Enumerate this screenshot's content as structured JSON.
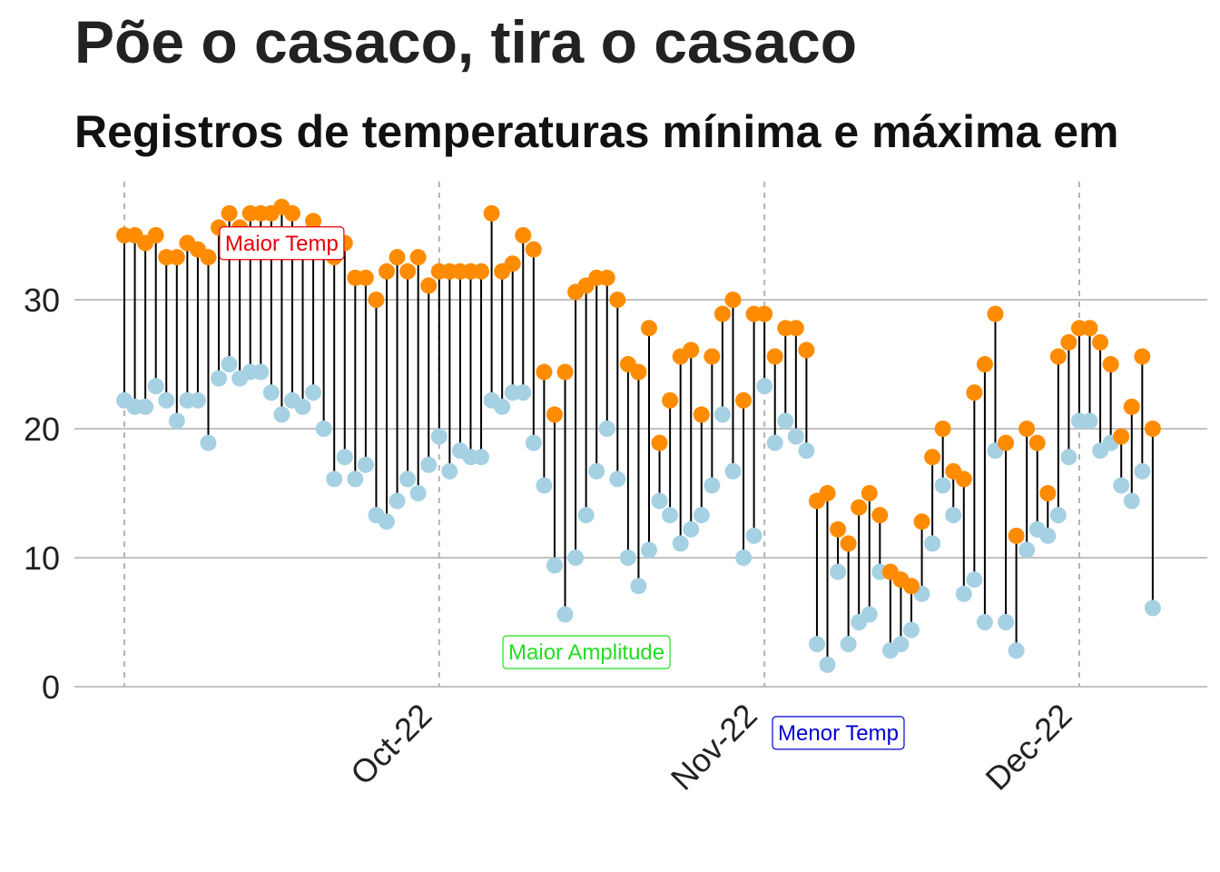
{
  "title": "Põe o casaco, tira o casaco",
  "subtitle": "Registros de temperaturas mínima e máxima em",
  "colors": {
    "min": "#a6d1e3",
    "max": "#ff8c00",
    "segment": "#000000",
    "grid": "#c2c2c2",
    "vline": "#b3b3b3"
  },
  "chart_data": {
    "type": "scatter",
    "x_start": "2022-09-01",
    "ylim": [
      0,
      39
    ],
    "yticks": [
      0,
      10,
      20,
      30
    ],
    "xticks": [
      {
        "date": "2022-10-01",
        "label": "Oct-22"
      },
      {
        "date": "2022-11-01",
        "label": "Nov-22"
      },
      {
        "date": "2022-12-01",
        "label": "Dec-22"
      }
    ],
    "vlines": [
      "2022-09-01",
      "2022-10-01",
      "2022-11-01",
      "2022-12-01"
    ],
    "grid": true,
    "series": [
      {
        "key": "min",
        "values": [
          22.2,
          21.7,
          21.7,
          23.3,
          22.2,
          20.6,
          22.2,
          22.2,
          18.9,
          23.9,
          25.0,
          23.9,
          24.4,
          24.4,
          22.8,
          21.1,
          22.2,
          21.7,
          22.8,
          20.0,
          16.1,
          17.8,
          16.1,
          17.2,
          13.3,
          12.8,
          14.4,
          16.1,
          15.0,
          17.2,
          19.4,
          16.7,
          18.3,
          17.8,
          17.8,
          22.2,
          21.7,
          22.8,
          22.8,
          18.9,
          15.6,
          9.4,
          5.6,
          10.0,
          13.3,
          16.7,
          20.0,
          16.1,
          10.0,
          7.8,
          10.6,
          14.4,
          13.3,
          11.1,
          12.2,
          13.3,
          15.6,
          21.1,
          16.7,
          10.0,
          11.7,
          23.3,
          18.9,
          20.6,
          19.4,
          18.3,
          3.3,
          1.7,
          8.9,
          3.3,
          5.0,
          5.6,
          8.9,
          2.8,
          3.3,
          4.4,
          7.2,
          11.1,
          15.6,
          13.3,
          7.2,
          8.3,
          5.0,
          18.3,
          5.0,
          2.8,
          10.6,
          12.2,
          11.7,
          13.3,
          17.8,
          20.6,
          20.6,
          18.3,
          18.9,
          15.6,
          14.4,
          16.7,
          6.1
        ]
      },
      {
        "key": "max",
        "values": [
          35.0,
          35.0,
          34.4,
          35.0,
          33.3,
          33.3,
          34.4,
          33.9,
          33.3,
          35.6,
          36.7,
          35.6,
          36.7,
          36.7,
          36.7,
          37.2,
          36.7,
          35.0,
          36.1,
          33.9,
          33.3,
          34.4,
          31.7,
          31.7,
          30.0,
          32.2,
          33.3,
          32.2,
          33.3,
          31.1,
          32.2,
          32.2,
          32.2,
          32.2,
          32.2,
          36.7,
          32.2,
          32.8,
          35.0,
          33.9,
          24.4,
          21.1,
          24.4,
          30.6,
          31.1,
          31.7,
          31.7,
          30.0,
          25.0,
          24.4,
          27.8,
          18.9,
          22.2,
          25.6,
          26.1,
          21.1,
          25.6,
          28.9,
          30.0,
          22.2,
          28.9,
          28.9,
          25.6,
          27.8,
          27.8,
          26.1,
          14.4,
          15.0,
          12.2,
          11.1,
          13.9,
          15.0,
          13.3,
          8.9,
          8.3,
          7.8,
          12.8,
          17.8,
          20.0,
          16.7,
          16.1,
          22.8,
          25.0,
          28.9,
          18.9,
          11.7,
          20.0,
          18.9,
          15.0,
          25.6,
          26.7,
          27.8,
          27.8,
          26.7,
          25.0,
          19.4,
          21.7,
          25.6,
          20.0
        ]
      }
    ],
    "annotations": [
      {
        "text": "Maior Temp",
        "color": "#e8000b"
      },
      {
        "text": "Maior Amplitude",
        "color": "#22dd22"
      },
      {
        "text": "Menor Temp",
        "color": "#0000d0"
      }
    ]
  }
}
